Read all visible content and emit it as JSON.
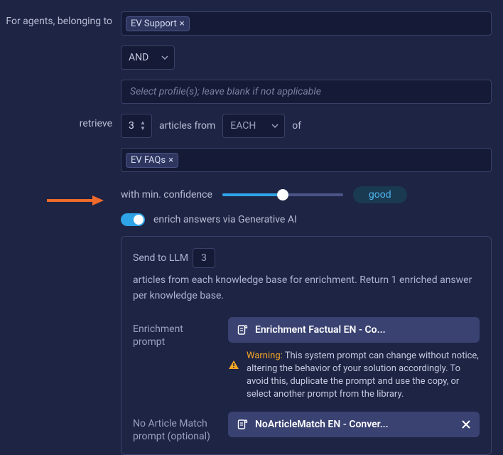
{
  "colors": {
    "background": "#1e2444",
    "input_bg": "#151a36",
    "border": "#3a4168",
    "text": "#c5c9de",
    "text_muted": "#9aa0bf",
    "accent": "#2ea3e6",
    "pill_bg": "#2e3660",
    "prompt_bg": "#3a4272",
    "warning": "#f5a623",
    "arrow": "#f06a2b",
    "white": "#ffffff"
  },
  "labels": {
    "agents_belonging": "For agents, belonging to",
    "retrieve": "retrieve",
    "articles_from": "articles from",
    "of": "of",
    "min_confidence": "with min. confidence",
    "enrich_toggle": "enrich answers via Generative AI",
    "send_prefix": "Send to LLM",
    "send_suffix": "articles from each knowledge base for enrichment. Return 1 enriched answer per knowledge base.",
    "enrichment_prompt": "Enrichment prompt",
    "no_match_prompt": "No Article Match prompt (optional)"
  },
  "agents": {
    "selected_profile": "EV Support",
    "logical_op": "AND",
    "profile_placeholder": "Select profile(s); leave blank if not applicable"
  },
  "retrieve": {
    "count": "3",
    "scope": "EACH",
    "kb_selected": "EV FAQs"
  },
  "confidence": {
    "slider_percent": 50,
    "badge": "good"
  },
  "enrich": {
    "enabled": true,
    "llm_article_count": "3",
    "enrichment_prompt_label": "Enrichment Factual EN - Co...",
    "nomatch_prompt_label": "NoArticleMatch EN - Conver...",
    "warning_title": "Warning:",
    "warning_text": "This system prompt can change without notice, altering the behavior of your solution accordingly. To avoid this, duplicate the prompt and use the copy, or select another prompt from the library."
  }
}
